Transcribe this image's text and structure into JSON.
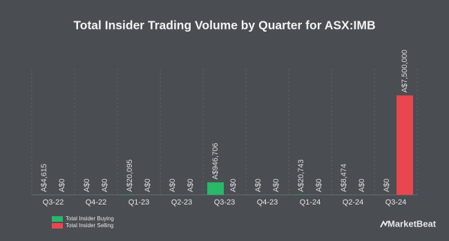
{
  "chart_data": {
    "type": "bar",
    "title": "Total Insider Trading Volume by Quarter for ASX:IMB",
    "categories": [
      "Q3-22",
      "Q4-22",
      "Q1-23",
      "Q2-23",
      "Q3-23",
      "Q4-23",
      "Q1-24",
      "Q2-24",
      "Q3-24"
    ],
    "series": [
      {
        "name": "Total Insider Buying",
        "color": "#27b86a",
        "values": [
          4615,
          0,
          20095,
          0,
          946706,
          0,
          20743,
          8474,
          0
        ],
        "value_labels": [
          "A$4,615",
          "A$0",
          "A$20,095",
          "A$0",
          "A$946,706",
          "A$0",
          "A$20,743",
          "A$8,474",
          "A$0"
        ]
      },
      {
        "name": "Total Insider Selling",
        "color": "#e8474f",
        "values": [
          0,
          0,
          0,
          0,
          0,
          0,
          0,
          0,
          7500000
        ],
        "value_labels": [
          "A$0",
          "A$0",
          "A$0",
          "A$0",
          "A$0",
          "A$0",
          "A$0",
          "A$0",
          "A$7,500,000"
        ]
      }
    ],
    "ylim": [
      0,
      9500000
    ],
    "grid": true,
    "legend": "bottom-left",
    "watermark": "MarketBeat"
  }
}
